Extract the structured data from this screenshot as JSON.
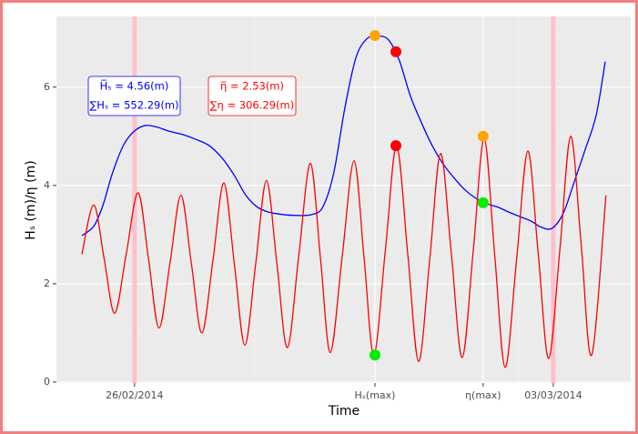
{
  "chart_data": {
    "type": "line",
    "x_label": "Time",
    "y_label": "Hₛ (m)/η (m)",
    "xlim": [
      -22.4,
      142.2
    ],
    "ylim": [
      -0.02,
      7.44
    ],
    "xticks": [
      {
        "value": 0,
        "label": "26/02/2014"
      },
      {
        "value": 68.9,
        "label": "Hₛ(max)"
      },
      {
        "value": 99.9,
        "label": "η(max)"
      },
      {
        "value": 120,
        "label": "03/03/2014"
      }
    ],
    "yticks": [
      0,
      2,
      4,
      6
    ],
    "grid": true,
    "vlines": {
      "x": [
        0,
        120
      ],
      "color": "#ffc0cb"
    },
    "series": [
      {
        "color": "#0000ff",
        "x": [
          -15.1,
          -11.7,
          -9.1,
          -6.3,
          -3.1,
          0,
          3.1,
          6.3,
          9.6,
          13.6,
          17.5,
          21.4,
          25.3,
          28.7,
          31.8,
          35.0,
          38.3,
          42.3,
          46.2,
          50.9,
          54.0,
          57.1,
          60.3,
          63.4,
          66.5,
          69.7,
          72.8,
          75.9,
          79.0,
          82.2,
          85.3,
          88.4,
          91.6,
          94.7,
          97.8,
          100.9,
          104.1,
          107.2,
          110.3,
          113.5,
          116.6,
          119.7,
          122.9,
          126.0,
          129.1,
          132.3,
          134.9
        ],
        "values": [
          2.98,
          3.17,
          3.59,
          4.26,
          4.83,
          5.11,
          5.22,
          5.19,
          5.11,
          5.04,
          4.94,
          4.81,
          4.54,
          4.19,
          3.81,
          3.57,
          3.46,
          3.41,
          3.39,
          3.41,
          3.57,
          4.26,
          5.59,
          6.59,
          6.98,
          7.04,
          6.96,
          6.54,
          5.83,
          5.28,
          4.81,
          4.44,
          4.15,
          3.91,
          3.74,
          3.63,
          3.56,
          3.46,
          3.37,
          3.28,
          3.15,
          3.13,
          3.44,
          4.07,
          4.72,
          5.43,
          6.52
        ]
      },
      {
        "color": "#ff0000",
        "x": [
          -15.1,
          -11.7,
          -8.7,
          -5.7,
          -2.4,
          1.0,
          4.0,
          7.0,
          10.2,
          13.3,
          16.3,
          19.3,
          22.5,
          25.6,
          28.6,
          31.6,
          34.7,
          37.8,
          40.8,
          43.8,
          47.1,
          50.4,
          53.3,
          56.1,
          59.5,
          62.9,
          65.8,
          68.6,
          71.9,
          75.1,
          78.3,
          81.4,
          84.6,
          87.7,
          90.8,
          93.9,
          97.1,
          100.2,
          103.2,
          106.2,
          109.5,
          112.7,
          115.7,
          118.7,
          121.9,
          125.0,
          128.0,
          131.0,
          135.1
        ],
        "values": [
          2.6,
          3.6,
          2.5,
          1.4,
          2.6,
          3.85,
          2.5,
          1.1,
          2.45,
          3.8,
          2.4,
          1.0,
          2.5,
          4.05,
          2.4,
          0.75,
          2.4,
          4.1,
          2.4,
          0.7,
          2.6,
          4.45,
          2.5,
          0.6,
          2.55,
          4.5,
          2.5,
          0.55,
          2.7,
          4.8,
          2.6,
          0.42,
          2.5,
          4.65,
          2.6,
          0.5,
          2.7,
          4.95,
          2.6,
          0.3,
          2.5,
          4.7,
          2.6,
          0.48,
          2.7,
          5.0,
          2.8,
          0.55,
          3.8
        ]
      }
    ],
    "markers": [
      {
        "x": 68.9,
        "y": 7.05,
        "color": "#ffa500"
      },
      {
        "x": 74.9,
        "y": 6.72,
        "color": "#ff0000"
      },
      {
        "x": 74.9,
        "y": 4.81,
        "color": "#ff0000"
      },
      {
        "x": 68.9,
        "y": 0.55,
        "color": "#00ee00"
      },
      {
        "x": 99.9,
        "y": 5.0,
        "color": "#ffa500"
      },
      {
        "x": 99.9,
        "y": 3.65,
        "color": "#00ee00"
      }
    ],
    "annotations": [
      {
        "lines": [
          "H̅ₛ = 4.56(m)",
          "∑Hₛ = 552.29(m)"
        ],
        "color": "#0000ff"
      },
      {
        "lines": [
          "η̅ = 2.53(m)",
          "∑η = 306.29(m)"
        ],
        "color": "#ff0000"
      }
    ]
  }
}
